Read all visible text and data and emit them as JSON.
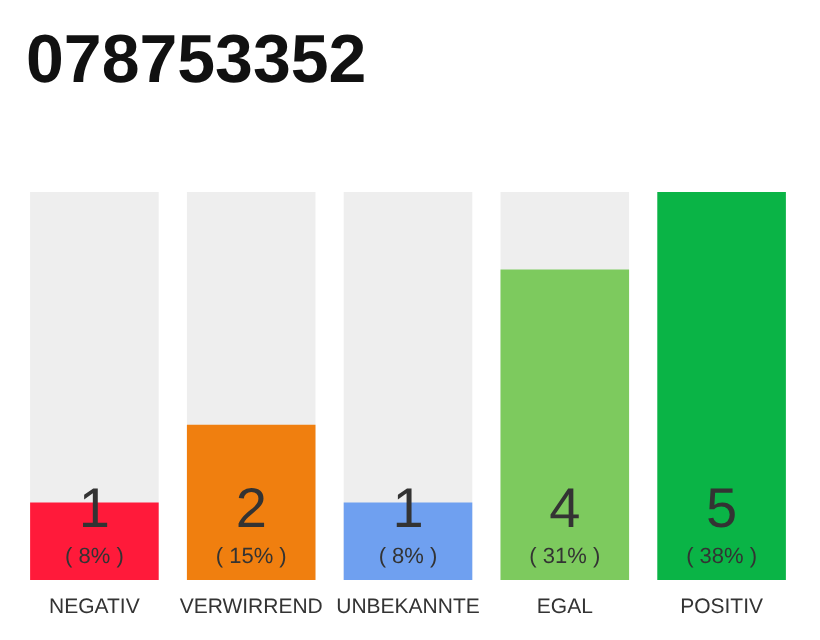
{
  "chart_data": {
    "type": "bar",
    "title": "078753352",
    "categories": [
      "NEGATIV",
      "VERWIRREND",
      "UNBEKANNTE",
      "EGAL",
      "POSITIV"
    ],
    "values": [
      1,
      2,
      1,
      4,
      5
    ],
    "colors": [
      "#ff1a3a",
      "#f07f0f",
      "#6fa0f0",
      "#7dca5e",
      "#0ab446"
    ],
    "data_labels": true,
    "annotations": [
      {
        "text": "( 8% )",
        "x": "NEGATIV",
        "y": 0
      },
      {
        "text": "( 15% )",
        "x": "VERWIRREND",
        "y": 0
      },
      {
        "text": "( 8% )",
        "x": "UNBEKANNTE",
        "y": 0
      },
      {
        "text": "( 31% )",
        "x": "EGAL",
        "y": 0
      },
      {
        "text": "( 38% )",
        "x": "POSITIV",
        "y": 0
      }
    ],
    "tick_labels": "x"
  }
}
